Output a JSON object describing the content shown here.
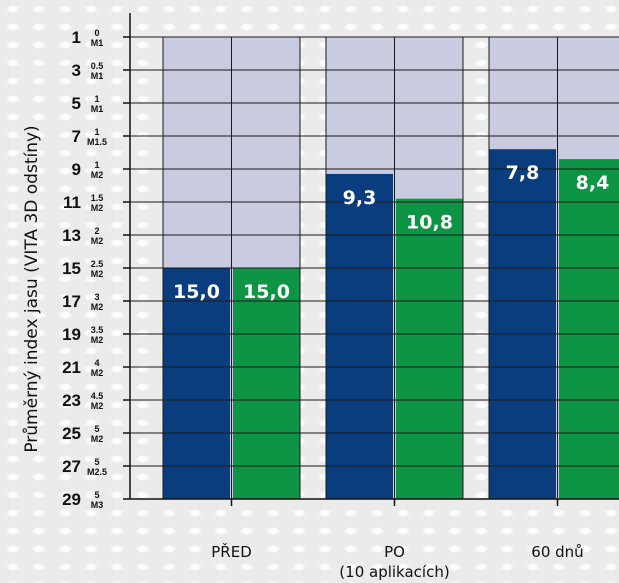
{
  "chart_data": {
    "type": "bar",
    "ylabel": "Průměrný index jasu (VITA 3D odstíny)",
    "y_inverted": true,
    "ylim": [
      1,
      29
    ],
    "y_ticks": [
      {
        "value": 1,
        "label": "1",
        "top": "0",
        "bottom": "M1"
      },
      {
        "value": 3,
        "label": "3",
        "top": "0.5",
        "bottom": "M1"
      },
      {
        "value": 5,
        "label": "5",
        "top": "1",
        "bottom": "M1"
      },
      {
        "value": 7,
        "label": "7",
        "top": "1",
        "bottom": "M1.5"
      },
      {
        "value": 9,
        "label": "9",
        "top": "1",
        "bottom": "M2"
      },
      {
        "value": 11,
        "label": "11",
        "top": "1.5",
        "bottom": "M2"
      },
      {
        "value": 13,
        "label": "13",
        "top": "2",
        "bottom": "M2"
      },
      {
        "value": 15,
        "label": "15",
        "top": "2.5",
        "bottom": "M2"
      },
      {
        "value": 17,
        "label": "17",
        "top": "3",
        "bottom": "M2"
      },
      {
        "value": 19,
        "label": "19",
        "top": "3.5",
        "bottom": "M2"
      },
      {
        "value": 21,
        "label": "21",
        "top": "4",
        "bottom": "M2"
      },
      {
        "value": 23,
        "label": "23",
        "top": "4.5",
        "bottom": "M2"
      },
      {
        "value": 25,
        "label": "25",
        "top": "5",
        "bottom": "M2"
      },
      {
        "value": 27,
        "label": "27",
        "top": "5",
        "bottom": "M2.5"
      },
      {
        "value": 29,
        "label": "29",
        "top": "5",
        "bottom": "M3"
      }
    ],
    "categories": [
      {
        "lines": [
          "PŘED"
        ]
      },
      {
        "lines": [
          "PO",
          "(10 aplikacích)"
        ]
      },
      {
        "lines": [
          "60 dnů"
        ]
      }
    ],
    "series": [
      {
        "color": "#0a3d7e",
        "values": [
          15.0,
          9.3,
          7.8
        ],
        "labels": [
          "15,0",
          "9,3",
          "7,8"
        ]
      },
      {
        "color": "#0d9444",
        "values": [
          15.0,
          10.8,
          8.4
        ],
        "labels": [
          "15,0",
          "10,8",
          "8,4"
        ]
      }
    ],
    "background_band_color": "#c9cbe0",
    "grid": true
  }
}
